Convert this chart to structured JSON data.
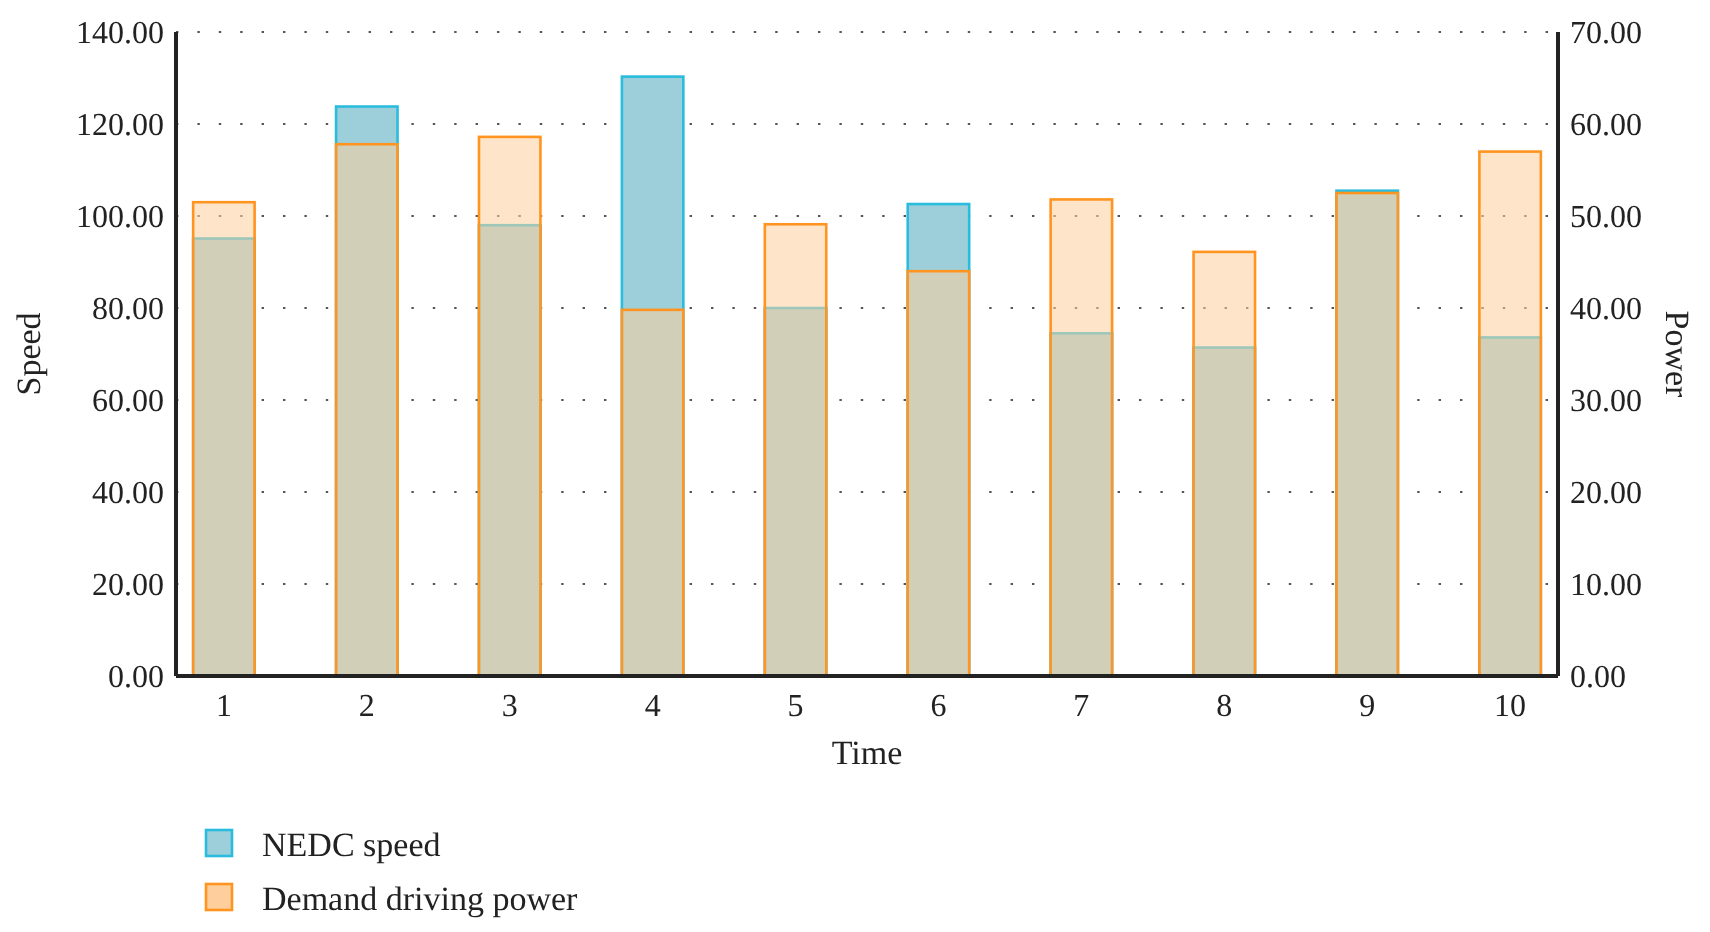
{
  "chart_data": {
    "type": "bar",
    "xlabel": "Time",
    "ylabel": "Speed",
    "y2label": "Power",
    "categories": [
      "1",
      "2",
      "3",
      "4",
      "5",
      "6",
      "7",
      "8",
      "9",
      "10"
    ],
    "series": [
      {
        "name": "NEDC speed",
        "color": "#9dcfda",
        "values": [
          95.1,
          123.8,
          98.0,
          130.3,
          80.0,
          102.6,
          74.5,
          71.4,
          105.5,
          73.6
        ]
      },
      {
        "name": "Demand driving power",
        "color": "#fecf9c",
        "axis": "y2",
        "values": [
          51.5,
          57.8,
          58.6,
          39.8,
          49.1,
          44.0,
          51.8,
          46.1,
          52.5,
          57.0
        ]
      }
    ],
    "ylim": [
      0,
      140
    ],
    "yticks": [
      {
        "value": 0,
        "label": "0.00"
      },
      {
        "value": 20,
        "label": "20.00"
      },
      {
        "value": 40,
        "label": "40.00"
      },
      {
        "value": 60,
        "label": "60.00"
      },
      {
        "value": 80,
        "label": "80.00"
      },
      {
        "value": 100,
        "label": "100.00"
      },
      {
        "value": 120,
        "label": "120.00"
      },
      {
        "value": 140,
        "label": "140.00"
      }
    ],
    "y2lim": [
      0,
      70
    ],
    "y2ticks": [
      {
        "value": 0,
        "label": "0.00"
      },
      {
        "value": 10,
        "label": "10.00"
      },
      {
        "value": 20,
        "label": "20.00"
      },
      {
        "value": 30,
        "label": "30.00"
      },
      {
        "value": 40,
        "label": "40.00"
      },
      {
        "value": 50,
        "label": "50.00"
      },
      {
        "value": 60,
        "label": "60.00"
      },
      {
        "value": 70,
        "label": "70.00"
      }
    ],
    "grid": "y",
    "legend": "bottom left"
  }
}
